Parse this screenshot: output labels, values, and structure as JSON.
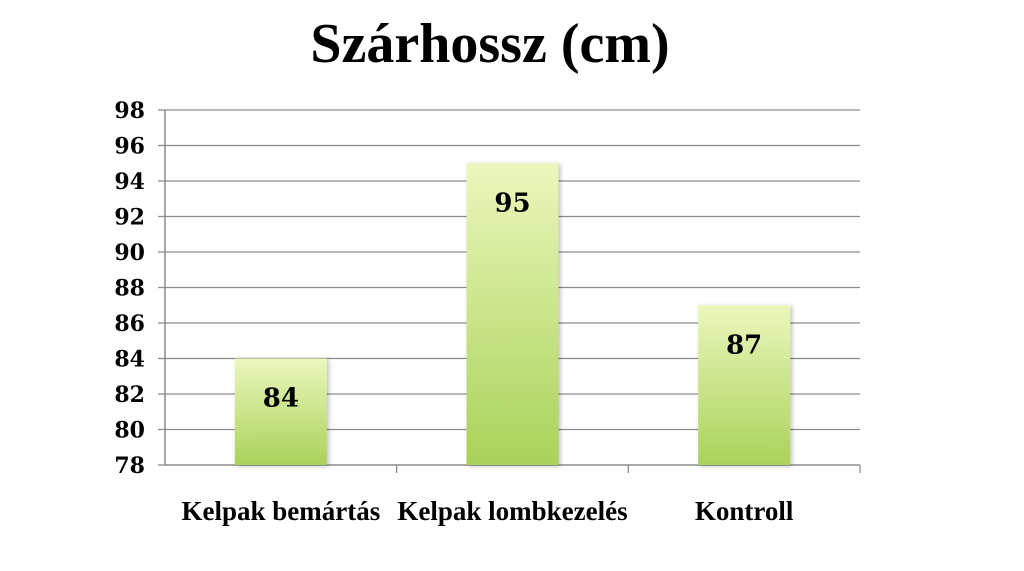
{
  "chart_data": {
    "type": "bar",
    "title": "Szárhossz (cm)",
    "categories": [
      "Kelpak bemártás",
      "Kelpak lombkezelés",
      "Kontroll"
    ],
    "values": [
      84,
      95,
      87
    ],
    "data_labels": [
      "84",
      "95",
      "87"
    ],
    "ylim": [
      78,
      98
    ],
    "yticks": [
      78,
      80,
      82,
      84,
      86,
      88,
      90,
      92,
      94,
      96,
      98
    ],
    "grid": true,
    "legend": "none",
    "bar_color_top": "#ebf7bc",
    "bar_color_bottom": "#a9d25a"
  }
}
